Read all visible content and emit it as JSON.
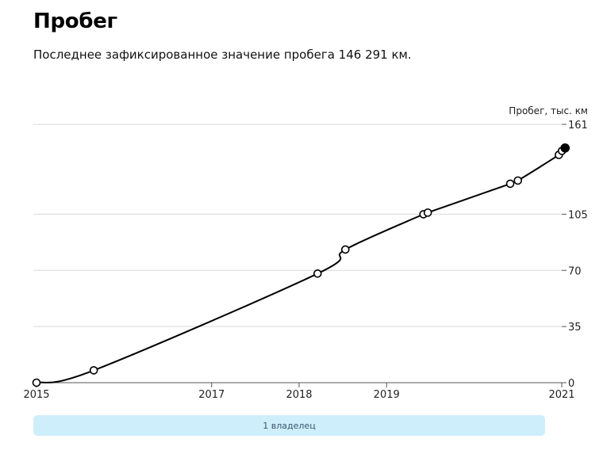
{
  "header": {
    "title": "Пробег",
    "subtitle": "Последнее зафиксированное значение пробега 146 291 км."
  },
  "chart_data": {
    "type": "line",
    "ylabel": "Пробег, тыс. км",
    "ylim": [
      0,
      161
    ],
    "yticks": [
      "0",
      "35",
      "70",
      "105",
      "161"
    ],
    "xlim": [
      "2015-01-01",
      "2021-01-01"
    ],
    "xticks": [
      "2015",
      "2017",
      "2018",
      "2019",
      "2021"
    ],
    "grid": true,
    "series": [
      {
        "x": [
          "2015-01-01",
          "2015-08-28",
          "2018-03-19",
          "2018-07-13",
          "2019-06-04",
          "2019-06-22",
          "2020-05-31",
          "2020-07-02",
          "2020-12-20",
          "2021-01-02",
          "2021-01-15"
        ],
        "y": [
          0,
          7.7,
          68,
          83,
          105,
          106,
          124,
          126,
          142,
          144.5,
          146.3
        ],
        "last_point_filled": true
      }
    ]
  },
  "owners": {
    "label": "1 владелец"
  },
  "colors": {
    "line": "#000000",
    "grid": "#d9d9d9",
    "owners_bar": "#cfeefb"
  }
}
